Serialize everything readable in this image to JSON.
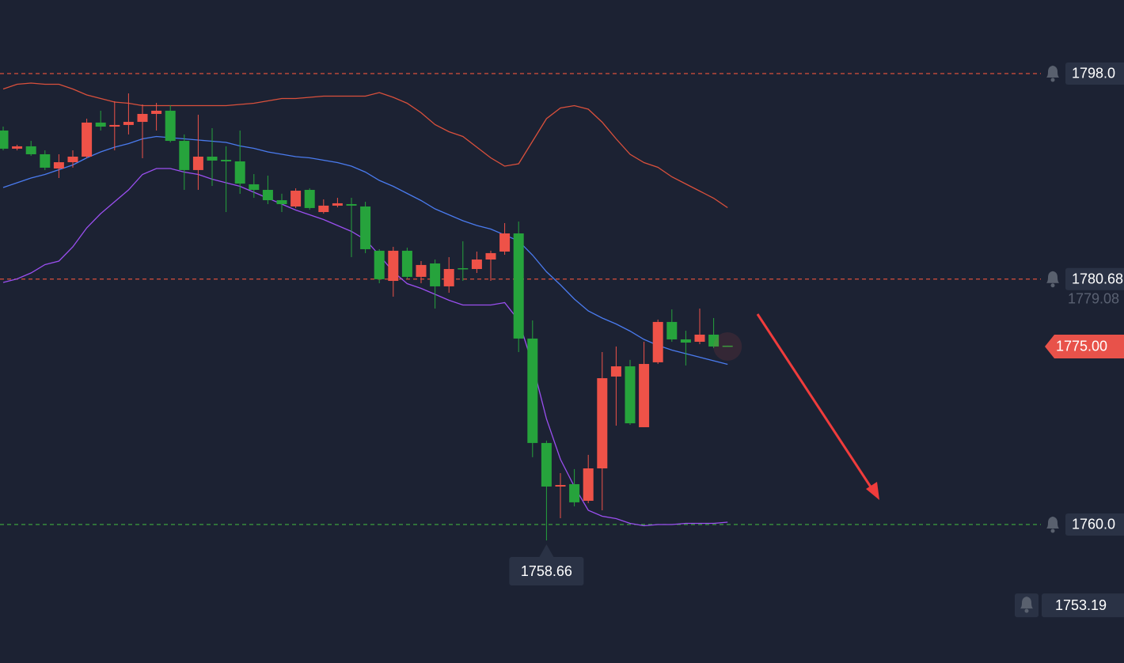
{
  "chart_data": {
    "type": "candlestick",
    "up_color": "#ee5248",
    "down_color": "#26a33c",
    "ylim": [
      1748.33,
      1804.2
    ],
    "categories": [
      null,
      null,
      null,
      null,
      null,
      null,
      null,
      null,
      null,
      null,
      null,
      null,
      null,
      null,
      null,
      null,
      null,
      null,
      null,
      null,
      null,
      null,
      null,
      null,
      null,
      null,
      null,
      null,
      null,
      null,
      null,
      null,
      null,
      null,
      null,
      null,
      null,
      null,
      null,
      null,
      null,
      null,
      null,
      null,
      null,
      null,
      null,
      null,
      null,
      null,
      null,
      null,
      null
    ],
    "open": [
      1793.2,
      1791.67,
      1791.87,
      1791.2,
      1790.0,
      1790.53,
      1791.0,
      1793.87,
      1793.53,
      1793.67,
      1793.93,
      1794.6,
      1794.87,
      1792.33,
      1789.87,
      1791.0,
      1790.73,
      1790.6,
      1788.67,
      1788.2,
      1787.33,
      1786.8,
      1788.2,
      1786.33,
      1786.87,
      1787.0,
      1786.8,
      1783.07,
      1780.53,
      1783.07,
      1780.87,
      1782.0,
      1780.07,
      1781.6,
      1781.53,
      1782.33,
      1783.0,
      1784.53,
      1775.67,
      1766.87,
      1763.2,
      1763.4,
      1762.0,
      1764.73,
      1772.47,
      1773.33,
      1768.2,
      1773.67,
      1777.07,
      1775.6,
      1775.4,
      1776.0,
      1775.07
    ],
    "high": [
      1793.53,
      1792.0,
      1792.33,
      1791.53,
      1791.2,
      1791.53,
      1794.2,
      1794.87,
      1795.67,
      1796.33,
      1795.4,
      1795.53,
      1795.33,
      1792.87,
      1794.53,
      1793.4,
      1791.87,
      1793.2,
      1789.53,
      1789.4,
      1787.87,
      1788.33,
      1788.33,
      1787.4,
      1787.53,
      1787.53,
      1787.2,
      1783.2,
      1783.4,
      1783.33,
      1782.2,
      1782.33,
      1782.53,
      1783.87,
      1783.0,
      1783.07,
      1785.4,
      1785.53,
      1777.2,
      1767.07,
      1764.33,
      1764.67,
      1765.87,
      1774.53,
      1775.0,
      1773.87,
      1775.4,
      1777.27,
      1778.13,
      1776.33,
      1778.2,
      1777.4,
      1775.07
    ],
    "low": [
      1791.53,
      1791.53,
      1791.07,
      1789.87,
      1789.2,
      1790.07,
      1790.87,
      1793.2,
      1791.53,
      1792.87,
      1790.87,
      1793.2,
      1792.2,
      1788.2,
      1788.2,
      1788.53,
      1786.33,
      1787.87,
      1787.53,
      1787.0,
      1786.33,
      1786.67,
      1786.53,
      1786.2,
      1786.73,
      1782.53,
      1782.87,
      1780.33,
      1779.2,
      1780.73,
      1780.33,
      1778.2,
      1779.53,
      1780.53,
      1781.2,
      1780.53,
      1782.73,
      1774.53,
      1765.67,
      1758.66,
      1760.53,
      1761.53,
      1761.8,
      1761.2,
      1768.33,
      1768.4,
      1768.2,
      1773.53,
      1775.4,
      1773.4,
      1775.2,
      1774.87,
      1775.0
    ],
    "close": [
      1791.67,
      1791.87,
      1791.2,
      1790.07,
      1790.53,
      1791.0,
      1793.87,
      1793.53,
      1793.67,
      1793.93,
      1794.6,
      1794.87,
      1792.33,
      1789.87,
      1791.0,
      1790.67,
      1790.6,
      1788.73,
      1788.2,
      1787.33,
      1787.0,
      1788.13,
      1786.67,
      1786.87,
      1787.07,
      1786.87,
      1783.2,
      1780.67,
      1783.07,
      1780.87,
      1781.87,
      1780.07,
      1781.53,
      1781.53,
      1782.33,
      1782.87,
      1784.53,
      1775.67,
      1766.87,
      1763.2,
      1763.33,
      1761.87,
      1764.73,
      1772.33,
      1773.33,
      1768.53,
      1773.53,
      1777.07,
      1775.6,
      1775.33,
      1776.0,
      1775.0,
      1775.0
    ],
    "lines": [
      {
        "color": "#d9503c",
        "values": [
          1796.7,
          1797.1,
          1797.2,
          1797.1,
          1797.1,
          1796.7,
          1796.2,
          1795.9,
          1795.6,
          1795.5,
          1795.3,
          1795.3,
          1795.3,
          1795.3,
          1795.3,
          1795.3,
          1795.3,
          1795.4,
          1795.5,
          1795.7,
          1795.9,
          1795.9,
          1796.0,
          1796.1,
          1796.1,
          1796.1,
          1796.1,
          1796.4,
          1796.0,
          1795.5,
          1794.7,
          1793.7,
          1793.1,
          1792.7,
          1791.8,
          1790.9,
          1790.2,
          1790.4,
          1792.3,
          1794.2,
          1795.1,
          1795.3,
          1795.0,
          1793.9,
          1792.5,
          1791.2,
          1790.5,
          1790.1,
          1789.3,
          1788.7,
          1788.1,
          1787.5,
          1786.7
        ]
      },
      {
        "color": "#4a7bef",
        "values": [
          1788.4,
          1788.8,
          1789.2,
          1789.5,
          1789.9,
          1790.3,
          1790.9,
          1791.4,
          1791.8,
          1792.1,
          1792.5,
          1792.7,
          1792.6,
          1792.5,
          1792.4,
          1792.3,
          1792.2,
          1791.9,
          1791.7,
          1791.4,
          1791.2,
          1791.0,
          1790.9,
          1790.7,
          1790.5,
          1790.2,
          1789.7,
          1789.0,
          1788.5,
          1787.9,
          1787.3,
          1786.6,
          1786.1,
          1785.6,
          1785.2,
          1784.9,
          1784.4,
          1783.9,
          1782.7,
          1781.3,
          1780.2,
          1779.0,
          1778.0,
          1777.4,
          1776.9,
          1776.3,
          1775.6,
          1775.1,
          1774.7,
          1774.4,
          1774.1,
          1773.8,
          1773.5
        ]
      },
      {
        "color": "#9a4ff0",
        "values": [
          1780.4,
          1780.7,
          1781.2,
          1781.9,
          1782.2,
          1783.4,
          1785.0,
          1786.2,
          1787.2,
          1788.2,
          1789.5,
          1790.0,
          1790.0,
          1789.7,
          1789.5,
          1789.1,
          1788.8,
          1788.5,
          1788.0,
          1787.5,
          1787.0,
          1786.5,
          1786.1,
          1785.7,
          1785.2,
          1784.7,
          1784.0,
          1782.7,
          1781.3,
          1780.3,
          1779.9,
          1779.4,
          1778.9,
          1778.5,
          1778.5,
          1778.5,
          1778.7,
          1777.2,
          1773.5,
          1768.9,
          1765.5,
          1763.2,
          1761.2,
          1760.7,
          1760.5,
          1760.1,
          1759.9,
          1760.0,
          1760.0,
          1760.1,
          1760.1,
          1760.1,
          1760.2
        ]
      }
    ],
    "price_lines": [
      {
        "value": 1798.0,
        "label": "1798.0",
        "color": "#d9503c"
      },
      {
        "value": 1780.68,
        "color": "#d9503c"
      },
      {
        "value": 1760.0,
        "label": "1760.0",
        "color": "#3fae3f"
      }
    ],
    "reference_price": 1779.08,
    "last_price": {
      "value": 1775.0,
      "label": "1775.00",
      "color": "#e8524a"
    },
    "low_marker": 1758.66,
    "alert_input": 1753.19
  }
}
